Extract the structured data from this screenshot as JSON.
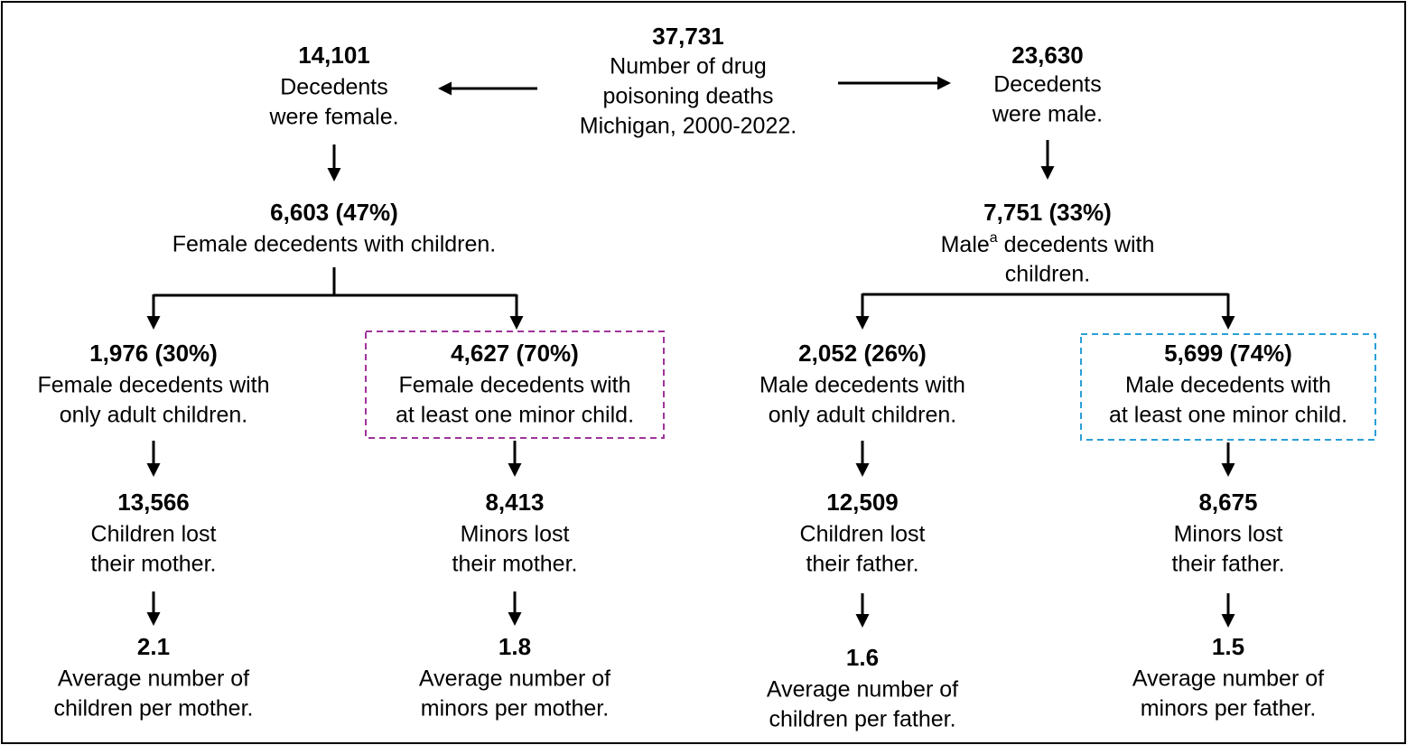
{
  "nodes": [
    {
      "value": "37,731",
      "lines": [
        "Number of drug",
        "poisoning deaths",
        "Michigan, 2000-2022."
      ]
    },
    {
      "value": "14,101",
      "lines": [
        "Decedents",
        "were female."
      ]
    },
    {
      "value": "23,630",
      "lines": [
        "Decedents",
        "were male."
      ]
    },
    {
      "value": "6,603 (47%)",
      "lines": [
        "Female decedents with children."
      ]
    },
    {
      "value": "7,751 (33%)",
      "lines": [
        {
          "text": "Male",
          "sup": "a",
          "rest": " decedents with"
        },
        "children."
      ]
    },
    {
      "value": "1,976 (30%)",
      "lines": [
        "Female decedents with",
        "only adult children."
      ]
    },
    {
      "value": "4,627 (70%)",
      "lines": [
        "Female decedents with",
        "at least one minor child."
      ]
    },
    {
      "value": "2,052 (26%)",
      "lines": [
        "Male decedents with",
        "only adult children."
      ]
    },
    {
      "value": "5,699 (74%)",
      "lines": [
        "Male decedents with",
        "at least one minor child."
      ]
    },
    {
      "value": "13,566",
      "lines": [
        "Children lost",
        "their mother."
      ]
    },
    {
      "value": "8,413",
      "lines": [
        "Minors lost",
        "their mother."
      ]
    },
    {
      "value": "12,509",
      "lines": [
        "Children lost",
        "their father."
      ]
    },
    {
      "value": "8,675",
      "lines": [
        "Minors lost",
        "their father."
      ]
    },
    {
      "value": "2.1",
      "lines": [
        "Average number of",
        "children per mother."
      ]
    },
    {
      "value": "1.8",
      "lines": [
        "Average number of",
        "minors per mother."
      ]
    },
    {
      "value": "1.6",
      "lines": [
        "Average number of",
        "children per father."
      ]
    },
    {
      "value": "1.5",
      "lines": [
        "Average number of",
        "minors per father."
      ]
    }
  ]
}
